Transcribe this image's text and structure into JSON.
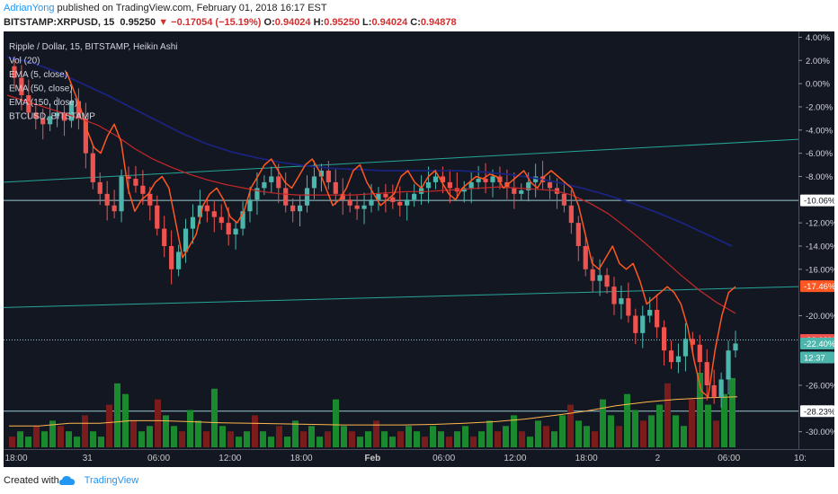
{
  "header": {
    "author": "AdrianYong",
    "publish_text": " published on TradingView.com, February 01, 2018 16:17 EST",
    "symbol": "BITSTAMP:XRPUSD, 15",
    "last": "0.95250",
    "change": "−0.17054 (−15.19%)",
    "o_label": "O:",
    "o_val": "0.94024",
    "h_label": "H:",
    "h_val": "0.95250",
    "l_label": "L:",
    "l_val": "0.94024",
    "c_label": "C:",
    "c_val": "0.94878"
  },
  "legend": [
    "Ripple / Dollar, 15, BITSTAMP, Heikin Ashi",
    "Vol (20)",
    "EMA (5, close)",
    "EMA (50, close)",
    "EMA (150, close)",
    "BTCUSD, BITSTAMP"
  ],
  "footer": {
    "created_with": "Created with",
    "brand": "TradingView"
  },
  "colors": {
    "background": "#131722",
    "up": "#4db6ac",
    "down": "#ef5350",
    "ema5": "#e2421a",
    "ema50": "#c62828",
    "ema150": "#1a237e",
    "btc": "#ff5722",
    "trendline": "#26a69a",
    "hline": "#b2ebf2",
    "vol_up": "#1b8a2f",
    "vol_down": "#7b1c1c"
  },
  "chart_data": {
    "type": "candlestick",
    "style": "Heikin Ashi",
    "yaxis_unit": "percent",
    "ylim": [
      -31.5,
      4.5
    ],
    "x_ticks": [
      "18:00",
      "31",
      "06:00",
      "12:00",
      "18:00",
      "Feb",
      "06:00",
      "12:00",
      "18:00",
      "2",
      "06:00",
      "10:"
    ],
    "y_ticks": [
      "4.00%",
      "2.00%",
      "0.00%",
      "-2.00%",
      "-4.00%",
      "-6.00%",
      "-8.00%",
      "-12.00%",
      "-14.00%",
      "-16.00%",
      "-20.00%",
      "-26.00%",
      "-30.00%"
    ],
    "markers": [
      {
        "label": "-10.06%",
        "value": -10.06,
        "bg": "#ffffff",
        "fg": "#131722"
      },
      {
        "label": "-17.46%",
        "value": -17.46,
        "bg": "#ff5722",
        "fg": "#ffffff"
      },
      {
        "label": "-22.09%",
        "value": -22.09,
        "bg": "#ef5350",
        "fg": "#ffffff"
      },
      {
        "label": "-22.40%",
        "value": -22.4,
        "bg": "#4db6ac",
        "fg": "#ffffff"
      },
      {
        "label": "12:37",
        "value": -23.6,
        "bg": "#4db6ac",
        "fg": "#ffffff"
      },
      {
        "label": "-28.23%",
        "value": -28.23,
        "bg": "#ffffff",
        "fg": "#131722"
      }
    ],
    "price_path_pct": [
      1.5,
      0.5,
      -1.0,
      -2.5,
      -3.0,
      -3.5,
      -2.8,
      -2.5,
      -3.2,
      -1.5,
      -3.0,
      -6.0,
      -8.5,
      -9.5,
      -10.5,
      -11.0,
      -8.0,
      -8.2,
      -8.8,
      -9.5,
      -10.5,
      -12.5,
      -14.0,
      -16.0,
      -14.5,
      -12.5,
      -11.5,
      -10.5,
      -11.0,
      -11.5,
      -12.0,
      -13.0,
      -12.5,
      -11.0,
      -10.0,
      -9.0,
      -8.5,
      -8.0,
      -9.0,
      -10.5,
      -11.0,
      -10.5,
      -9.0,
      -8.0,
      -7.5,
      -8.5,
      -9.5,
      -10.0,
      -10.5,
      -10.8,
      -10.5,
      -10.0,
      -9.5,
      -9.8,
      -10.2,
      -10.5,
      -10.0,
      -9.5,
      -9.0,
      -8.5,
      -8.0,
      -8.5,
      -9.0,
      -9.3,
      -9.0,
      -8.5,
      -8.2,
      -8.5,
      -8.0,
      -8.5,
      -9.0,
      -9.5,
      -9.2,
      -8.5,
      -8.0,
      -8.5,
      -9.0,
      -9.5,
      -10.5,
      -12.0,
      -14.0,
      -16.0,
      -17.0,
      -16.5,
      -17.5,
      -19.0,
      -18.5,
      -20.0,
      -21.5,
      -20.0,
      -19.5,
      -21.0,
      -23.0,
      -24.0,
      -23.5,
      -22.0,
      -22.5,
      -24.0,
      -26.0,
      -27.0,
      -25.5,
      -23.0,
      -22.4
    ],
    "ema5_pct": [
      1.0,
      0.0,
      -1.5,
      -2.5,
      -3.0,
      -3.2,
      -2.9,
      -2.7,
      -3.0,
      -2.0,
      -3.5,
      -6.0,
      -8.0,
      -9.3,
      -10.2,
      -10.5,
      -9.2,
      -8.7,
      -9.0,
      -9.8,
      -11.0,
      -12.7,
      -14.0,
      -14.5,
      -13.5,
      -12.5,
      -11.8,
      -11.2,
      -11.3,
      -11.6,
      -12.0,
      -12.5,
      -12.3,
      -11.3,
      -10.4,
      -9.5,
      -8.9,
      -8.4,
      -8.9,
      -10.0,
      -10.7,
      -10.4,
      -9.4,
      -8.5,
      -8.0,
      -8.6,
      -9.4,
      -9.9,
      -10.3,
      -10.5,
      -10.3,
      -9.9,
      -9.6,
      -9.8,
      -10.1,
      -10.3,
      -10.0,
      -9.6,
      -9.2,
      -8.7,
      -8.3,
      -8.6,
      -9.0,
      -9.2,
      -8.9,
      -8.5,
      -8.2,
      -8.4,
      -8.1,
      -8.5,
      -9.0,
      -9.4,
      -9.1,
      -8.6,
      -8.3,
      -8.7,
      -9.1,
      -9.6,
      -10.7,
      -12.0,
      -14.0,
      -15.6,
      -16.6,
      -16.5,
      -17.4,
      -18.6,
      -18.5,
      -19.7,
      -20.9,
      -20.1,
      -19.9,
      -21.0,
      -22.5,
      -23.5,
      -23.2,
      -22.3,
      -22.7,
      -23.9,
      -25.5,
      -26.3,
      -25.2,
      -23.3,
      -22.6
    ],
    "ema50_pct": [
      -1.0,
      -1.5,
      -2.0,
      -2.5,
      -3.0,
      -3.6,
      -4.5,
      -5.6,
      -6.5,
      -7.2,
      -7.8,
      -8.3,
      -8.7,
      -9.0,
      -9.3,
      -9.5,
      -9.6,
      -9.6,
      -9.6,
      -9.6,
      -9.5,
      -9.4,
      -9.3,
      -9.3,
      -9.2,
      -9.1,
      -9.0,
      -8.9,
      -9.0,
      -9.1,
      -9.2,
      -9.6,
      -10.3,
      -11.2,
      -12.4,
      -13.7,
      -15.1,
      -16.5,
      -17.8,
      -18.9,
      -19.8
    ],
    "ema150_pct": [
      2.3,
      1.8,
      1.0,
      0.0,
      -1.0,
      -2.1,
      -3.2,
      -4.3,
      -5.2,
      -5.9,
      -6.4,
      -6.8,
      -7.1,
      -7.3,
      -7.4,
      -7.5,
      -7.5,
      -7.5,
      -7.5,
      -7.6,
      -7.8,
      -8.1,
      -8.5,
      -9.0,
      -9.6,
      -10.3,
      -11.1,
      -12.0,
      -13.0,
      -14.0
    ],
    "btc_pct": [
      1.0,
      -0.5,
      -2.0,
      -4.0,
      -5.5,
      -6.0,
      -4.5,
      -3.5,
      -5.0,
      -9.0,
      -11.0,
      -10.0,
      -9.5,
      -8.5,
      -8.0,
      -9.0,
      -12.0,
      -15.0,
      -14.0,
      -13.0,
      -10.5,
      -9.5,
      -9.0,
      -10.0,
      -11.5,
      -12.0,
      -11.0,
      -9.0,
      -8.0,
      -7.0,
      -6.5,
      -7.5,
      -8.5,
      -9.0,
      -8.0,
      -7.0,
      -6.5,
      -7.5,
      -9.0,
      -10.5,
      -10.0,
      -9.0,
      -7.5,
      -7.0,
      -8.5,
      -9.5,
      -10.5,
      -10.0,
      -9.5,
      -8.0,
      -7.5,
      -8.5,
      -9.0,
      -8.0,
      -7.5,
      -8.5,
      -9.5,
      -10.0,
      -9.0,
      -8.5,
      -8.0,
      -8.2,
      -7.8,
      -8.0,
      -9.0,
      -8.5,
      -8.0,
      -7.5,
      -8.5,
      -9.0,
      -8.0,
      -7.5,
      -8.0,
      -8.5,
      -9.0,
      -10.5,
      -13.0,
      -15.5,
      -16.0,
      -15.0,
      -14.0,
      -15.5,
      -16.0,
      -15.5,
      -17.0,
      -19.0,
      -18.5,
      -18.0,
      -17.5,
      -18.0,
      -19.0,
      -21.0,
      -24.0,
      -26.5,
      -27.0,
      -23.0,
      -20.0,
      -18.0,
      -17.5
    ],
    "trendlines": [
      {
        "from": [
          0,
          -8.5
        ],
        "to": [
          1,
          -4.8
        ]
      },
      {
        "from": [
          0,
          -19.3
        ],
        "to": [
          1,
          -17.5
        ]
      }
    ],
    "hlines": [
      {
        "value": -10.06,
        "style": "solid"
      },
      {
        "value": -22.09,
        "style": "dotted"
      },
      {
        "value": -28.23,
        "style": "solid"
      }
    ],
    "volume_profile": [
      2,
      3,
      2,
      4,
      3,
      5,
      4,
      3,
      2,
      6,
      3,
      2,
      8,
      12,
      10,
      5,
      3,
      4,
      9,
      6,
      4,
      3,
      7,
      5,
      3,
      11,
      4,
      3,
      2,
      3,
      6,
      3,
      2,
      4,
      2,
      5,
      3,
      4,
      2,
      3,
      9,
      4,
      3,
      2,
      3,
      5,
      3,
      2,
      3,
      4,
      3,
      2,
      4,
      3,
      2,
      3,
      4,
      2,
      3,
      5,
      3,
      4,
      6,
      3,
      2,
      5,
      4,
      3,
      6,
      8,
      5,
      4,
      3,
      9,
      6,
      4,
      10,
      7,
      5,
      6,
      8,
      12,
      6,
      4,
      9,
      14,
      8,
      5,
      10,
      13
    ],
    "volume_ma": [
      4,
      4,
      4.5,
      4.5,
      5,
      5,
      4.8,
      4.6,
      4.5,
      4.4,
      4.3,
      4.2,
      4.2,
      4.2,
      4.3,
      4.5,
      4.8,
      5.3,
      6.0,
      6.8,
      7.8,
      8.5,
      9.0,
      9.3,
      9.5
    ]
  }
}
